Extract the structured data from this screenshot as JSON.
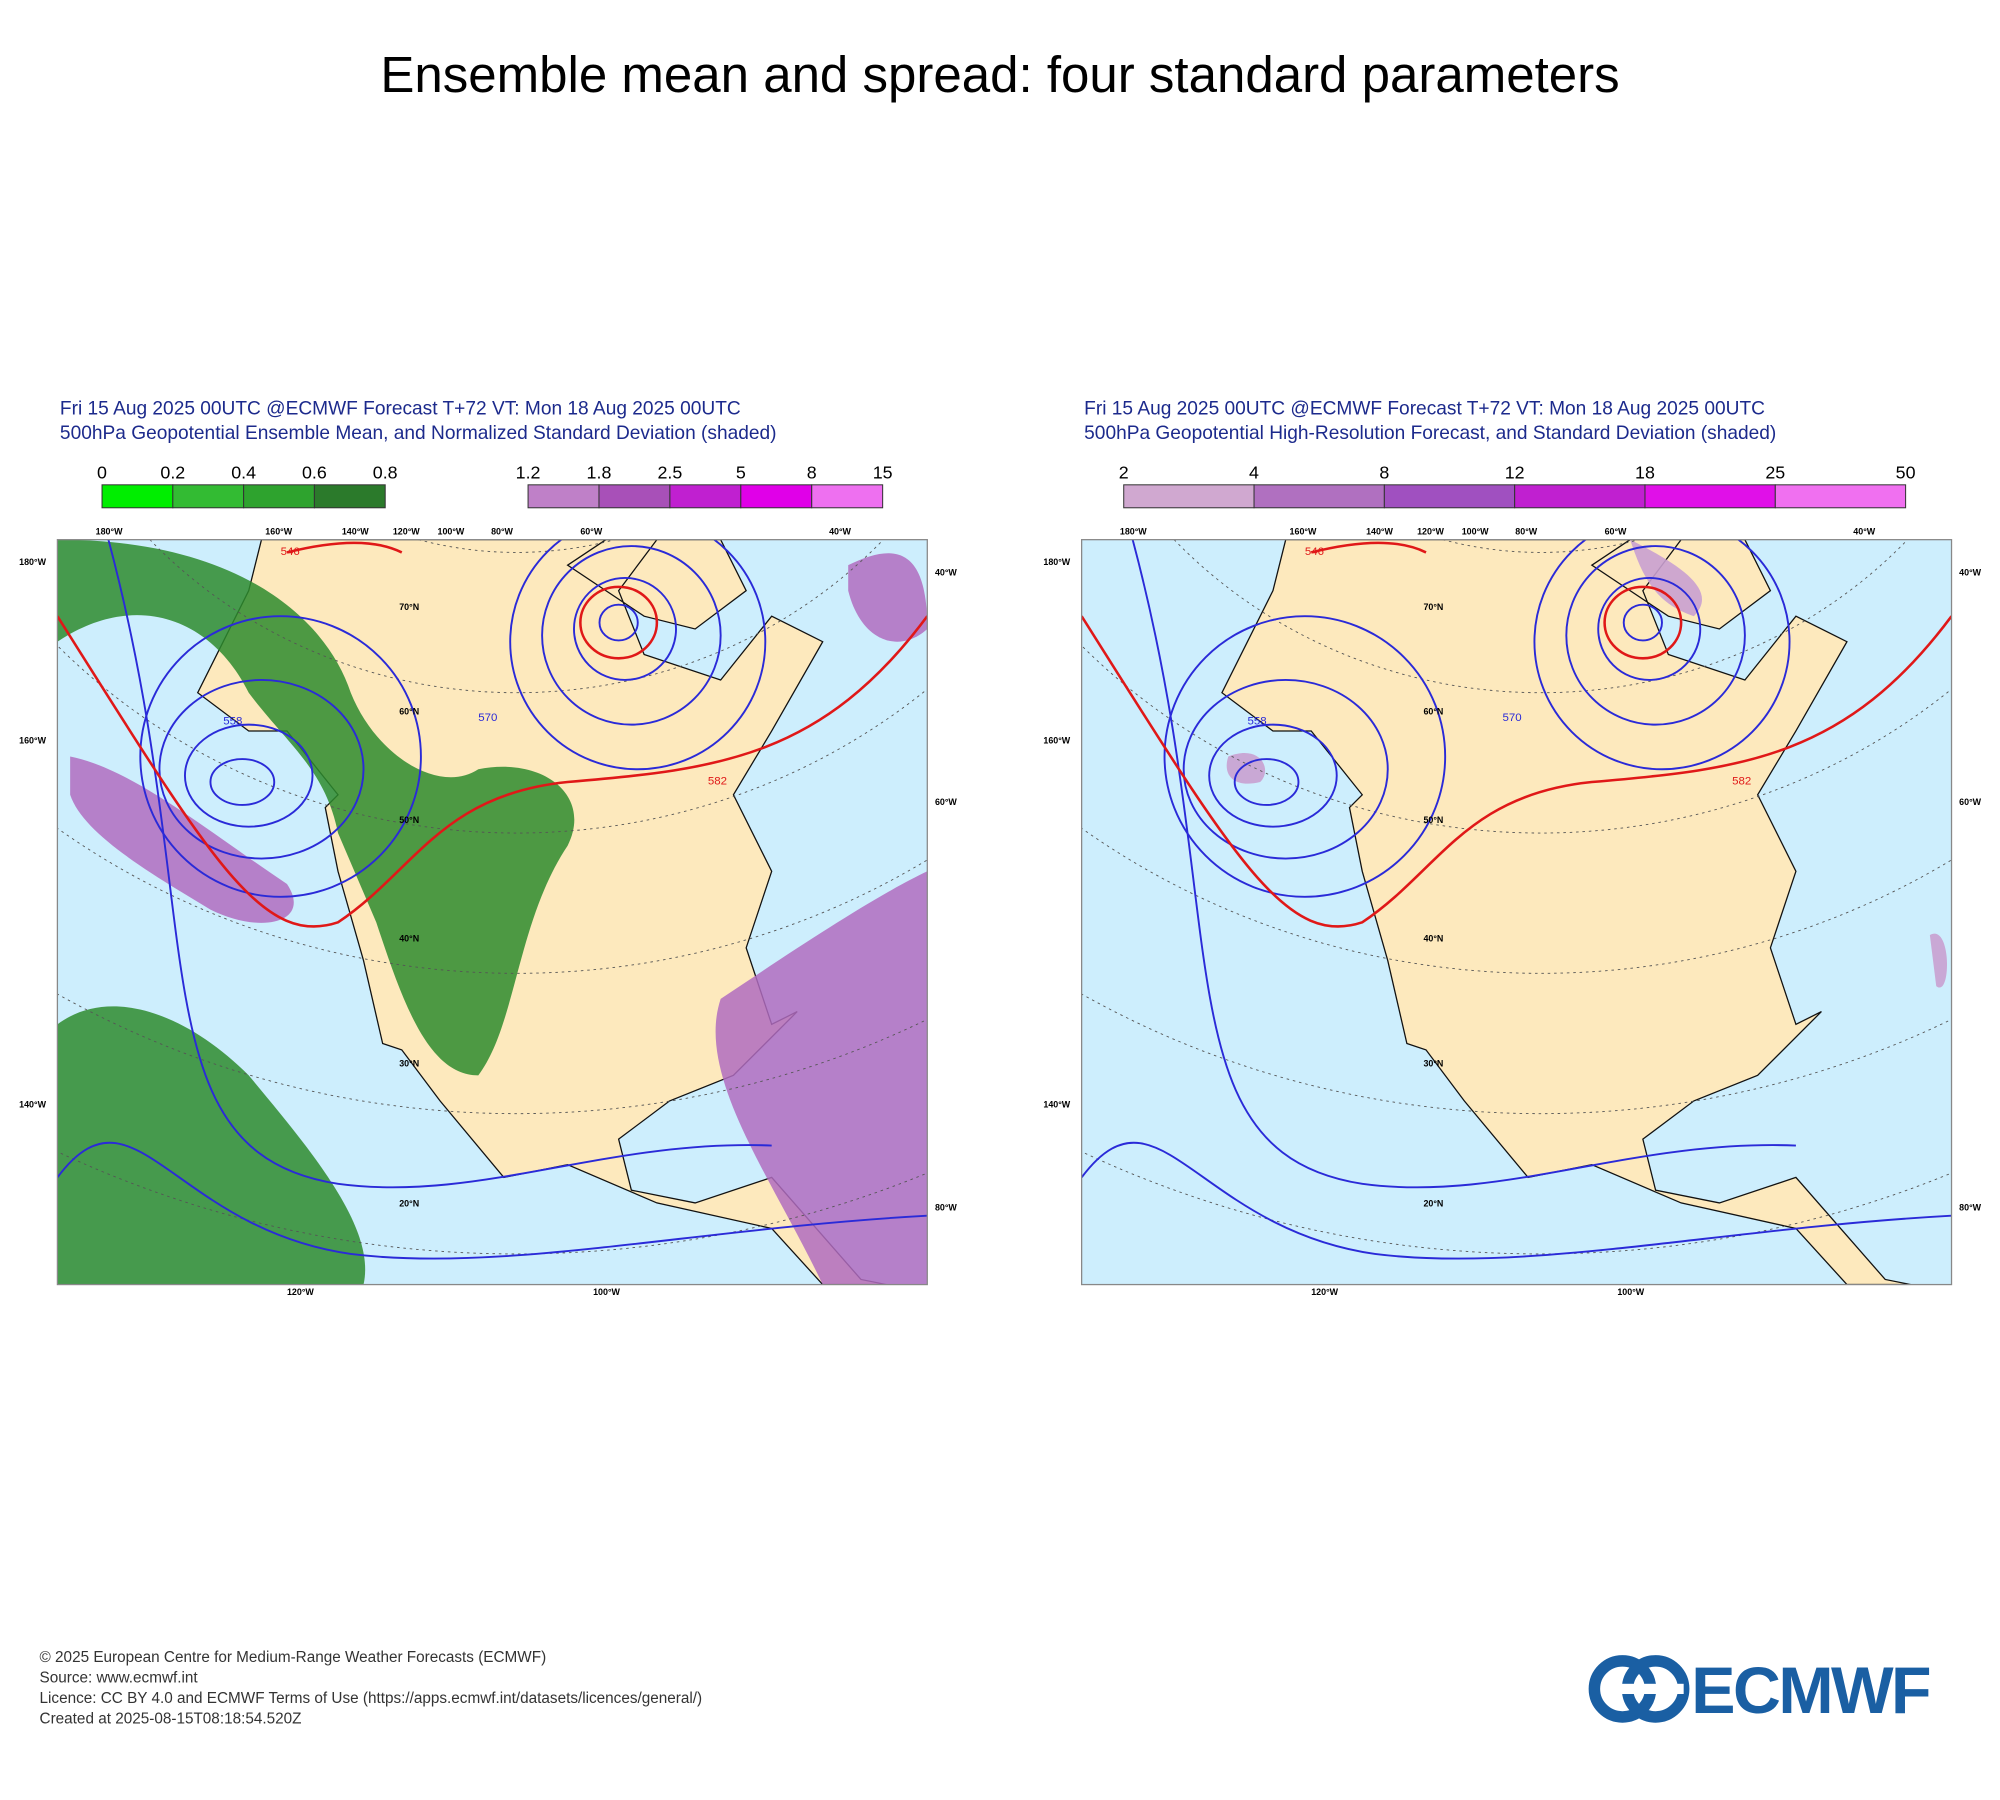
{
  "title": "Ensemble mean and spread: four standard parameters",
  "panels": [
    {
      "header": [
        "Fri 15 Aug 2025 00UTC @ECMWF Forecast T+72 VT: Mon 18 Aug 2025 00UTC",
        "500hPa Geopotential Ensemble Mean, and Normalized Standard Deviation (shaded)"
      ],
      "colorbars": [
        {
          "labels": [
            0,
            0.2,
            0.4,
            0.6,
            0.8
          ],
          "colors": [
            "#00ee00",
            "#33bb33",
            "#2ea32e",
            "#2b7a2b"
          ]
        },
        {
          "labels": [
            1.2,
            1.8,
            2.5,
            5,
            8,
            15
          ],
          "colors": [
            "#bf80c8",
            "#a850b8",
            "#c020d0",
            "#e000e8",
            "#ee70f0"
          ]
        }
      ],
      "map": {
        "top_labels": [
          "180°W",
          "160°W",
          "140°W",
          "120°W",
          "100°W",
          "80°W",
          "60°W",
          "40°W"
        ],
        "left_labels": [
          "180°W",
          "160°W",
          "140°W"
        ],
        "right_labels": [
          "40°W",
          "60°W",
          "80°W"
        ],
        "bottom_labels": [
          "120°W",
          "100°W"
        ],
        "lat_labels": [
          "70°N",
          "60°N",
          "50°N",
          "40°N",
          "30°N",
          "20°N"
        ],
        "contour_labels": [
          546,
          558,
          570,
          582
        ]
      }
    },
    {
      "header": [
        "Fri 15 Aug 2025 00UTC @ECMWF Forecast T+72 VT: Mon 18 Aug 2025 00UTC",
        "500hPa Geopotential High-Resolution Forecast, and Standard Deviation (shaded)"
      ],
      "colorbars": [
        {
          "labels": [
            2,
            4,
            8,
            12,
            18,
            25,
            50
          ],
          "colors": [
            "#d0a8d0",
            "#b070c0",
            "#a050c0",
            "#c020d0",
            "#e010e8",
            "#f070f0"
          ]
        }
      ],
      "map": {
        "top_labels": [
          "180°W",
          "160°W",
          "140°W",
          "120°W",
          "100°W",
          "80°W",
          "60°W",
          "40°W"
        ],
        "left_labels": [
          "180°W",
          "160°W",
          "140°W"
        ],
        "right_labels": [
          "40°W",
          "60°W",
          "80°W"
        ],
        "bottom_labels": [
          "120°W",
          "100°W"
        ],
        "lat_labels": [
          "70°N",
          "60°N",
          "50°N",
          "40°N",
          "30°N",
          "20°N"
        ],
        "contour_labels": [
          546,
          558,
          570,
          582
        ]
      }
    }
  ],
  "footer": [
    "© 2025 European Centre for Medium-Range Weather Forecasts (ECMWF)",
    "Source: www.ecmwf.int",
    "Licence: CC BY 4.0 and ECMWF Terms of Use (https://apps.ecmwf.int/datasets/licences/general/)",
    "Created at 2025-08-15T08:18:54.520Z"
  ],
  "logo": "ECMWF"
}
